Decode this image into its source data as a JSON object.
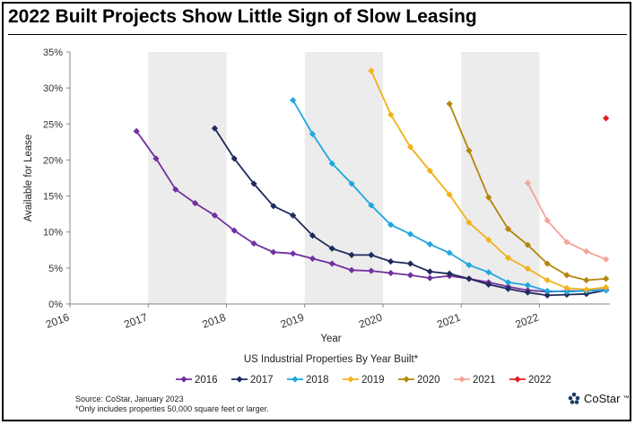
{
  "title": "2022 Built Projects Show Little Sign of Slow Leasing",
  "footer": {
    "source": "Source: CoStar, January 2023",
    "note": "*Only includes properties 50,000 square feet or larger.",
    "logo_text": "CoStar",
    "logo_mark": "™",
    "logo_icon": "costar-logo-icon"
  },
  "chart_data": {
    "type": "line",
    "title": "2022 Built Projects Show Little Sign of Slow Leasing",
    "xlabel": "Year",
    "subtitle": "US Industrial Properties By Year Built*",
    "ylabel": "Available for Lease",
    "xlim": [
      2016,
      2022.9
    ],
    "ylim": [
      0,
      35
    ],
    "x_ticks": [
      2016,
      2017,
      2018,
      2019,
      2020,
      2021,
      2022
    ],
    "y_ticks": [
      0,
      5,
      10,
      15,
      20,
      25,
      30,
      35
    ],
    "y_tick_labels": [
      "0%",
      "5%",
      "10%",
      "15%",
      "20%",
      "25%",
      "30%",
      "35%"
    ],
    "shaded_bands": [
      [
        2017,
        2018
      ],
      [
        2019,
        2020
      ],
      [
        2021,
        2022
      ]
    ],
    "legend_position": "bottom",
    "series": [
      {
        "name": "2016",
        "color": "#7030a0",
        "x": [
          2016.85,
          2017.1,
          2017.35,
          2017.6,
          2017.85,
          2018.1,
          2018.35,
          2018.6,
          2018.85,
          2019.1,
          2019.35,
          2019.6,
          2019.85,
          2020.1,
          2020.35,
          2020.6,
          2020.85,
          2021.1,
          2021.35,
          2021.6,
          2021.85,
          2022.1,
          2022.35,
          2022.6,
          2022.85
        ],
        "values": [
          24.0,
          20.2,
          15.9,
          14.0,
          12.3,
          10.2,
          8.4,
          7.2,
          7.0,
          6.3,
          5.6,
          4.7,
          4.6,
          4.3,
          4.0,
          3.6,
          3.9,
          3.5,
          3.0,
          2.4,
          1.9,
          1.7,
          1.8,
          1.8,
          2.0
        ]
      },
      {
        "name": "2017",
        "color": "#1f2a5c",
        "x": [
          2017.85,
          2018.1,
          2018.35,
          2018.6,
          2018.85,
          2019.1,
          2019.35,
          2019.6,
          2019.85,
          2020.1,
          2020.35,
          2020.6,
          2020.85,
          2021.1,
          2021.35,
          2021.6,
          2021.85,
          2022.1,
          2022.35,
          2022.6,
          2022.85
        ],
        "values": [
          24.4,
          20.2,
          16.7,
          13.6,
          12.3,
          9.5,
          7.7,
          6.8,
          6.8,
          5.9,
          5.6,
          4.5,
          4.2,
          3.5,
          2.7,
          2.1,
          1.6,
          1.2,
          1.3,
          1.4,
          1.9
        ]
      },
      {
        "name": "2018",
        "color": "#1fa7df",
        "x": [
          2018.85,
          2019.1,
          2019.35,
          2019.6,
          2019.85,
          2020.1,
          2020.35,
          2020.6,
          2020.85,
          2021.1,
          2021.35,
          2021.6,
          2021.85,
          2022.1,
          2022.35,
          2022.6,
          2022.85
        ],
        "values": [
          28.3,
          23.6,
          19.5,
          16.7,
          13.7,
          11.0,
          9.7,
          8.3,
          7.1,
          5.4,
          4.4,
          3.0,
          2.6,
          1.8,
          1.7,
          1.8,
          1.9
        ]
      },
      {
        "name": "2019",
        "color": "#f2b21b",
        "x": [
          2019.85,
          2020.1,
          2020.35,
          2020.6,
          2020.85,
          2021.1,
          2021.35,
          2021.6,
          2021.85,
          2022.1,
          2022.35,
          2022.6,
          2022.85
        ],
        "values": [
          32.4,
          26.3,
          21.8,
          18.5,
          15.2,
          11.3,
          8.9,
          6.4,
          4.9,
          3.3,
          2.2,
          2.0,
          2.3
        ]
      },
      {
        "name": "2020",
        "color": "#b5860b",
        "x": [
          2020.85,
          2021.1,
          2021.35,
          2021.6,
          2021.85,
          2022.1,
          2022.35,
          2022.6,
          2022.85
        ],
        "values": [
          27.8,
          21.3,
          14.8,
          10.4,
          8.2,
          5.6,
          4.0,
          3.3,
          3.5
        ]
      },
      {
        "name": "2021",
        "color": "#f4a49a",
        "x": [
          2021.85,
          2022.1,
          2022.35,
          2022.6,
          2022.85
        ],
        "values": [
          16.8,
          11.6,
          8.6,
          7.3,
          6.2
        ]
      },
      {
        "name": "2022",
        "color": "#e0201c",
        "x": [
          2022.85
        ],
        "values": [
          25.8
        ]
      }
    ]
  }
}
